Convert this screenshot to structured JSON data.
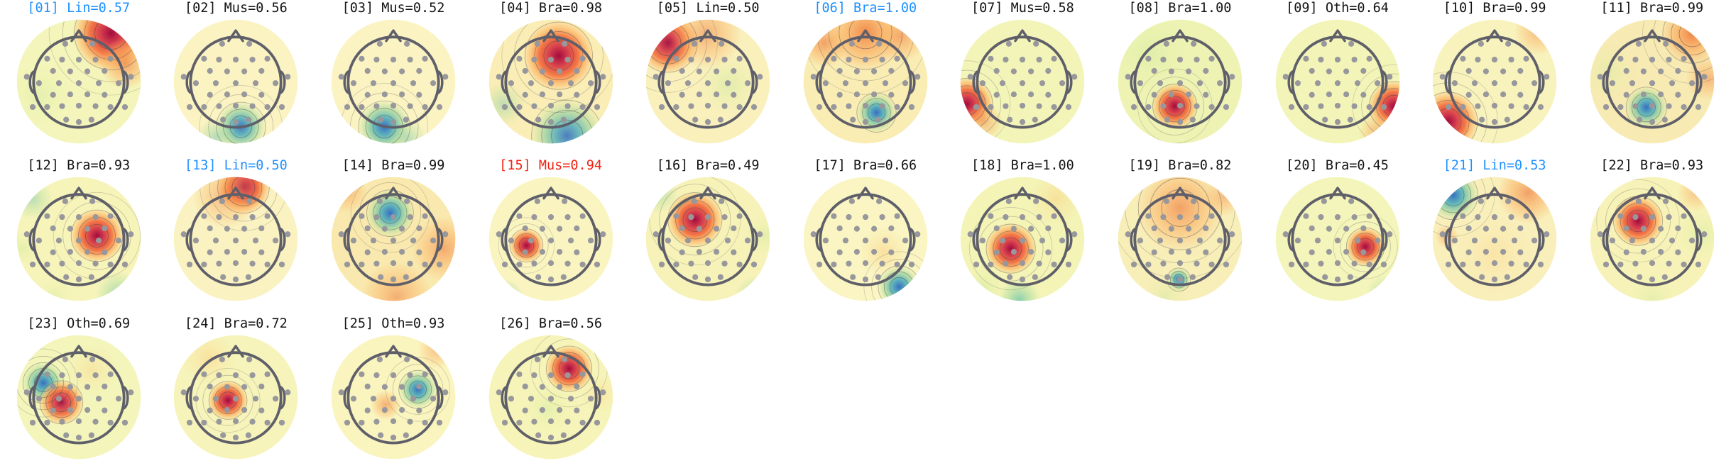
{
  "figure": {
    "background": "#ffffff",
    "description": "Grid of 26 EEG ICA component topographic maps with classification labels",
    "label_colors": {
      "default": "#141414",
      "blue": "#1e90ff",
      "red": "#f02311"
    },
    "head_outline_color": "#5f5f6a",
    "sensor_dot_color": "#97979c",
    "contour_color": "#3e3e48"
  },
  "palette": {
    "HS": [
      [
        "0%",
        "#a30b3d",
        1
      ],
      [
        "28%",
        "#d6404e",
        1
      ],
      [
        "55%",
        "#f3713f",
        0.95
      ],
      [
        "78%",
        "#fdb96a",
        0.75
      ],
      [
        "100%",
        "#fdb96a",
        0
      ]
    ],
    "HM": [
      [
        "0%",
        "#ef7a3c",
        0.95
      ],
      [
        "55%",
        "#fbb062",
        0.75
      ],
      [
        "100%",
        "#fbb062",
        0
      ]
    ],
    "HW": [
      [
        "0%",
        "#fbc46f",
        0.8
      ],
      [
        "60%",
        "#fbdc95",
        0.5
      ],
      [
        "100%",
        "#fbdc95",
        0
      ]
    ],
    "CS": [
      [
        "0%",
        "#3a6fc0",
        1
      ],
      [
        "32%",
        "#54aebc",
        0.95
      ],
      [
        "62%",
        "#9fd5a2",
        0.8
      ],
      [
        "100%",
        "#cde89e",
        0
      ]
    ],
    "CM": [
      [
        "0%",
        "#63bfae",
        0.85
      ],
      [
        "55%",
        "#abdca2",
        0.65
      ],
      [
        "100%",
        "#abdca2",
        0
      ]
    ],
    "GN": [
      [
        "0%",
        "#cde89e",
        0.85
      ],
      [
        "55%",
        "#e3f0a6",
        0.55
      ],
      [
        "100%",
        "#e3f0a6",
        0
      ]
    ]
  },
  "sensor_positions": [
    [
      -0.3,
      0.85
    ],
    [
      0.3,
      0.85
    ],
    [
      -0.7,
      0.52
    ],
    [
      -0.37,
      0.5
    ],
    [
      0,
      0.5
    ],
    [
      0.37,
      0.5
    ],
    [
      0.7,
      0.52
    ],
    [
      -0.57,
      0.25
    ],
    [
      -0.19,
      0.24
    ],
    [
      0.19,
      0.24
    ],
    [
      0.57,
      0.25
    ],
    [
      -0.88,
      -0.02
    ],
    [
      -0.44,
      -0.02
    ],
    [
      0,
      -0.02
    ],
    [
      0.44,
      -0.02
    ],
    [
      0.88,
      -0.02
    ],
    [
      -0.57,
      -0.28
    ],
    [
      -0.19,
      -0.27
    ],
    [
      0.19,
      -0.27
    ],
    [
      0.57,
      -0.28
    ],
    [
      -0.7,
      -0.55
    ],
    [
      -0.37,
      -0.53
    ],
    [
      0,
      -0.52
    ],
    [
      0.37,
      -0.53
    ],
    [
      0.7,
      -0.55
    ],
    [
      -0.28,
      -0.83
    ],
    [
      0,
      -0.88
    ],
    [
      0.28,
      -0.83
    ],
    [
      -1.15,
      0.12
    ],
    [
      1.15,
      0.12
    ],
    [
      -1.02,
      -0.55
    ],
    [
      1.02,
      -0.55
    ]
  ],
  "chart_data": {
    "type": "topomap_grid",
    "rows": 3,
    "cols": 11,
    "components": [
      {
        "label": "[01] Lin=0.57",
        "index": 1,
        "class": "Lin",
        "prob": 0.57,
        "label_color": "#1e90ff",
        "base": "#f4f5ba",
        "blobs": [
          [
            150,
            25,
            60,
            "HS",
            1
          ],
          [
            172,
            72,
            40,
            "HM",
            0.7
          ],
          [
            40,
            120,
            50,
            "GN",
            0.45
          ]
        ]
      },
      {
        "label": "[02] Mus=0.56",
        "index": 2,
        "class": "Mus",
        "prob": 0.56,
        "label_color": "#141414",
        "base": "#fbf3c2",
        "blobs": [
          [
            108,
            170,
            40,
            "CS",
            0.95
          ],
          [
            70,
            186,
            30,
            "CM",
            0.55
          ]
        ]
      },
      {
        "label": "[03] Mus=0.52",
        "index": 3,
        "class": "Mus",
        "prob": 0.52,
        "label_color": "#141414",
        "base": "#fbf3c2",
        "blobs": [
          [
            86,
            170,
            42,
            "CS",
            1
          ],
          [
            122,
            188,
            30,
            "CM",
            0.5
          ]
        ]
      },
      {
        "label": "[04] Bra=0.98",
        "index": 4,
        "class": "Bra",
        "prob": 0.98,
        "label_color": "#141414",
        "base": "#faeeb6",
        "blobs": [
          [
            112,
            60,
            55,
            "HS",
            1
          ],
          [
            125,
            184,
            58,
            "CS",
            0.9
          ],
          [
            26,
            135,
            34,
            "CM",
            0.45
          ]
        ]
      },
      {
        "label": "[05] Lin=0.50",
        "index": 5,
        "class": "Lin",
        "prob": 0.5,
        "label_color": "#141414",
        "base": "#f9f0bc",
        "blobs": [
          [
            38,
            40,
            48,
            "HS",
            0.95
          ],
          [
            98,
            26,
            55,
            "HM",
            0.55
          ],
          [
            132,
            105,
            46,
            "GN",
            0.65
          ]
        ]
      },
      {
        "label": "[06] Bra=1.00",
        "index": 6,
        "class": "Bra",
        "prob": 1.0,
        "label_color": "#1e90ff",
        "base": "#f9edb4",
        "blobs": [
          [
            100,
            24,
            60,
            "HM",
            0.9
          ],
          [
            36,
            40,
            38,
            "HM",
            0.7
          ],
          [
            155,
            30,
            40,
            "HM",
            0.6
          ],
          [
            117,
            148,
            32,
            "CS",
            1
          ]
        ]
      },
      {
        "label": "[07] Mus=0.58",
        "index": 7,
        "class": "Mus",
        "prob": 0.58,
        "label_color": "#141414",
        "base": "#f3f5b8",
        "blobs": [
          [
            14,
            135,
            42,
            "HS",
            1
          ],
          [
            40,
            162,
            30,
            "HM",
            0.5
          ]
        ]
      },
      {
        "label": "[08] Bra=1.00",
        "index": 8,
        "class": "Bra",
        "prob": 1.0,
        "label_color": "#141414",
        "base": "#eef3b4",
        "blobs": [
          [
            92,
            138,
            36,
            "HS",
            1
          ],
          [
            55,
            55,
            65,
            "GN",
            0.5
          ]
        ]
      },
      {
        "label": "[09] Oth=0.64",
        "index": 9,
        "class": "Oth",
        "prob": 0.64,
        "label_color": "#141414",
        "base": "#f3f5b8",
        "blobs": [
          [
            187,
            138,
            40,
            "HS",
            1
          ],
          [
            162,
            178,
            30,
            "HM",
            0.5
          ]
        ]
      },
      {
        "label": "[10] Bra=0.99",
        "index": 10,
        "class": "Bra",
        "prob": 0.99,
        "label_color": "#141414",
        "base": "#f8f3bc",
        "blobs": [
          [
            28,
            162,
            48,
            "HS",
            1
          ],
          [
            168,
            22,
            38,
            "HM",
            0.5
          ]
        ]
      },
      {
        "label": "[11] Bra=0.99",
        "index": 11,
        "class": "Bra",
        "prob": 0.99,
        "label_color": "#141414",
        "base": "#f7eab2",
        "blobs": [
          [
            162,
            26,
            48,
            "HM",
            0.95
          ],
          [
            186,
            95,
            34,
            "HM",
            0.5
          ],
          [
            91,
            140,
            33,
            "CS",
            1
          ],
          [
            32,
            85,
            42,
            "GN",
            0.45
          ]
        ]
      },
      {
        "label": "[12] Bra=0.93",
        "index": 12,
        "class": "Bra",
        "prob": 0.93,
        "label_color": "#141414",
        "base": "#f7f4ba",
        "blobs": [
          [
            128,
            95,
            42,
            "HS",
            1
          ],
          [
            28,
            38,
            32,
            "CM",
            0.5
          ],
          [
            162,
            186,
            36,
            "CM",
            0.65
          ],
          [
            12,
            115,
            28,
            "GN",
            0.55
          ],
          [
            62,
            190,
            30,
            "GN",
            0.45
          ]
        ]
      },
      {
        "label": "[13] Lin=0.50",
        "index": 13,
        "class": "Lin",
        "prob": 0.5,
        "label_color": "#1e90ff",
        "base": "#faf2c0",
        "blobs": [
          [
            112,
            20,
            42,
            "HS",
            1
          ],
          [
            84,
            34,
            50,
            "HM",
            0.5
          ]
        ]
      },
      {
        "label": "[14] Bra=0.99",
        "index": 14,
        "class": "Bra",
        "prob": 0.99,
        "label_color": "#141414",
        "base": "#f9e9ae",
        "blobs": [
          [
            95,
            60,
            38,
            "CS",
            1
          ],
          [
            178,
            115,
            50,
            "HM",
            0.6
          ],
          [
            105,
            190,
            55,
            "HM",
            0.55
          ],
          [
            28,
            28,
            32,
            "HM",
            0.45
          ]
        ]
      },
      {
        "label": "[15] Mus=0.94",
        "index": 15,
        "class": "Mus",
        "prob": 0.94,
        "label_color": "#f02311",
        "base": "#faf5c0",
        "blobs": [
          [
            62,
            110,
            27,
            "HS",
            1
          ],
          [
            28,
            192,
            30,
            "CM",
            0.8
          ]
        ]
      },
      {
        "label": "[16] Bra=0.49",
        "index": 16,
        "class": "Bra",
        "prob": 0.49,
        "label_color": "#141414",
        "base": "#f6f2b8",
        "blobs": [
          [
            80,
            70,
            44,
            "HS",
            1
          ],
          [
            22,
            28,
            32,
            "CM",
            0.5
          ],
          [
            174,
            190,
            32,
            "CM",
            0.55
          ],
          [
            188,
            95,
            30,
            "GN",
            0.55
          ]
        ]
      },
      {
        "label": "[17] Bra=0.66",
        "index": 17,
        "class": "Bra",
        "prob": 0.66,
        "label_color": "#141414",
        "base": "#faf5c2",
        "blobs": [
          [
            152,
            174,
            34,
            "CS",
            1
          ],
          [
            128,
            120,
            38,
            "HW",
            0.55
          ]
        ]
      },
      {
        "label": "[18] Bra=1.00",
        "index": 18,
        "class": "Bra",
        "prob": 1.0,
        "label_color": "#141414",
        "base": "#f3f4b6",
        "blobs": [
          [
            82,
            115,
            40,
            "HS",
            1
          ],
          [
            95,
            194,
            32,
            "CM",
            0.85
          ],
          [
            38,
            176,
            32,
            "GN",
            0.65
          ],
          [
            152,
            38,
            42,
            "HW",
            0.5
          ]
        ]
      },
      {
        "label": "[19] Bra=0.82",
        "index": 19,
        "class": "Bra",
        "prob": 0.82,
        "label_color": "#141414",
        "base": "#f8eeb8",
        "blobs": [
          [
            100,
            52,
            68,
            "HM",
            0.7
          ],
          [
            98,
            163,
            19,
            "CS",
            1
          ],
          [
            78,
            188,
            32,
            "GN",
            0.55
          ],
          [
            168,
            35,
            30,
            "HM",
            0.45
          ]
        ]
      },
      {
        "label": "[20] Bra=0.45",
        "index": 20,
        "class": "Bra",
        "prob": 0.45,
        "label_color": "#141414",
        "base": "#f4f5ba",
        "blobs": [
          [
            143,
            112,
            31,
            "HS",
            1
          ],
          [
            170,
            182,
            26,
            "CM",
            0.4
          ]
        ]
      },
      {
        "label": "[21] Lin=0.53",
        "index": 21,
        "class": "Lin",
        "prob": 0.53,
        "label_color": "#1e90ff",
        "base": "#f9efba",
        "blobs": [
          [
            36,
            32,
            40,
            "CS",
            1
          ],
          [
            152,
            28,
            48,
            "HM",
            0.7
          ],
          [
            26,
            96,
            18,
            "HM",
            0.5
          ],
          [
            100,
            125,
            60,
            "HW",
            0.3
          ]
        ]
      },
      {
        "label": "[22] Bra=0.93",
        "index": 22,
        "class": "Bra",
        "prob": 0.93,
        "label_color": "#141414",
        "base": "#f7f3b8",
        "blobs": [
          [
            78,
            72,
            40,
            "HS",
            1
          ],
          [
            176,
            92,
            40,
            "GN",
            0.55
          ],
          [
            100,
            192,
            40,
            "GN",
            0.45
          ],
          [
            168,
            28,
            30,
            "HM",
            0.4
          ]
        ]
      },
      {
        "label": "[23] Oth=0.69",
        "index": 23,
        "class": "Oth",
        "prob": 0.69,
        "label_color": "#141414",
        "base": "#f3f5ba",
        "blobs": [
          [
            45,
            78,
            33,
            "CS",
            1
          ],
          [
            73,
            108,
            35,
            "HS",
            0.95
          ],
          [
            120,
            58,
            40,
            "HW",
            0.4
          ]
        ]
      },
      {
        "label": "[24] Bra=0.72",
        "index": 24,
        "class": "Bra",
        "prob": 0.72,
        "label_color": "#141414",
        "base": "#f6f4ba",
        "blobs": [
          [
            88,
            105,
            31,
            "HS",
            1
          ],
          [
            58,
            40,
            42,
            "HW",
            0.5
          ]
        ]
      },
      {
        "label": "[25] Oth=0.93",
        "index": 25,
        "class": "Oth",
        "prob": 0.93,
        "label_color": "#141414",
        "base": "#faf4be",
        "blobs": [
          [
            138,
            88,
            31,
            "CS",
            1
          ],
          [
            88,
            112,
            23,
            "HM",
            0.6
          ],
          [
            168,
            26,
            30,
            "HM",
            0.45
          ]
        ]
      },
      {
        "label": "[26] Bra=0.56",
        "index": 26,
        "class": "Bra",
        "prob": 0.56,
        "label_color": "#141414",
        "base": "#f6f4b8",
        "blobs": [
          [
            128,
            56,
            37,
            "HS",
            1
          ],
          [
            95,
            118,
            38,
            "GN",
            0.5
          ],
          [
            176,
            95,
            28,
            "HW",
            0.4
          ]
        ]
      }
    ]
  }
}
